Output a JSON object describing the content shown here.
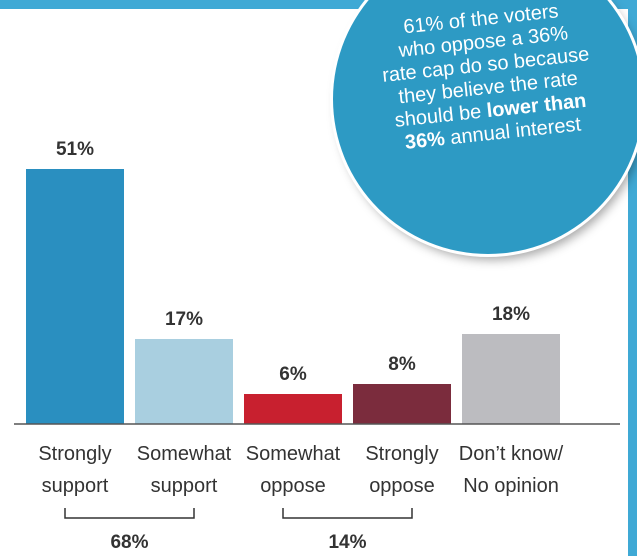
{
  "chart_data": {
    "type": "bar",
    "categories": [
      "Strongly support",
      "Somewhat support",
      "Somewhat oppose",
      "Strongly oppose",
      "Don’t know/ No opinion"
    ],
    "category_lines": [
      [
        "Strongly",
        "support"
      ],
      [
        "Somewhat",
        "support"
      ],
      [
        "Somewhat",
        "oppose"
      ],
      [
        "Strongly",
        "oppose"
      ],
      [
        "Don’t know/",
        "No opinion"
      ]
    ],
    "values": [
      51,
      17,
      6,
      8,
      18
    ],
    "value_labels": [
      "51%",
      "17%",
      "6%",
      "8%",
      "18%"
    ],
    "colors": [
      "#2a8fc0",
      "#a9cfe0",
      "#c8202f",
      "#7b2c3d",
      "#bcbcc0"
    ],
    "ylim": [
      0,
      60
    ],
    "groups": [
      {
        "label": "68%",
        "from": 0,
        "to": 1
      },
      {
        "label": "14%",
        "from": 2,
        "to": 3
      }
    ]
  },
  "callout": {
    "line1": "61% of the voters",
    "line2": "who oppose a 36%",
    "line3": "rate cap do so because",
    "line4": "they believe the rate",
    "line5_pre": "should be ",
    "line5_bold": "lower than",
    "line6_bold": "36%",
    "line6_post": " annual interest"
  },
  "colors": {
    "accent": "#3fa9d5",
    "callout_bg": "#2d9ac4"
  }
}
